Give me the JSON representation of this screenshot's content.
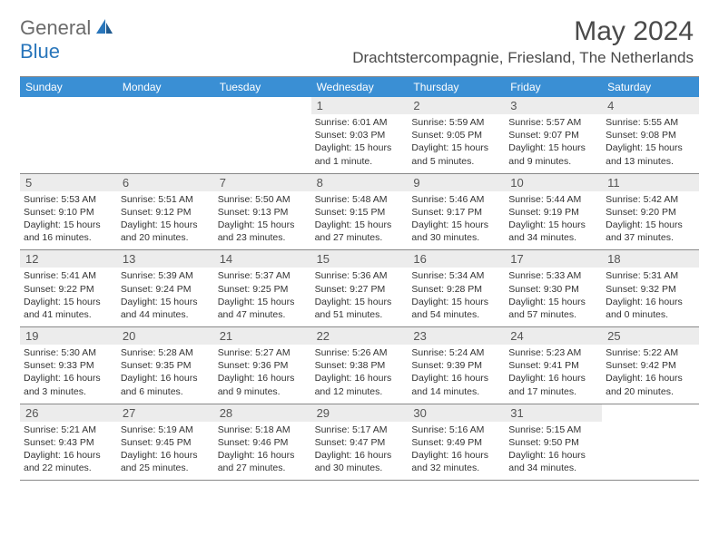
{
  "logo": {
    "general": "General",
    "blue": "Blue"
  },
  "title": "May 2024",
  "location": "Drachtstercompagnie, Friesland, The Netherlands",
  "colors": {
    "header_bg": "#3a8fd4",
    "header_text": "#ffffff",
    "daynum_bg": "#ececec",
    "border": "#888888",
    "logo_gray": "#6b6b6b",
    "logo_blue": "#2976bb"
  },
  "day_headers": [
    "Sunday",
    "Monday",
    "Tuesday",
    "Wednesday",
    "Thursday",
    "Friday",
    "Saturday"
  ],
  "weeks": [
    [
      {
        "n": "",
        "sr": "",
        "ss": "",
        "dl": ""
      },
      {
        "n": "",
        "sr": "",
        "ss": "",
        "dl": ""
      },
      {
        "n": "",
        "sr": "",
        "ss": "",
        "dl": ""
      },
      {
        "n": "1",
        "sr": "Sunrise: 6:01 AM",
        "ss": "Sunset: 9:03 PM",
        "dl": "Daylight: 15 hours and 1 minute."
      },
      {
        "n": "2",
        "sr": "Sunrise: 5:59 AM",
        "ss": "Sunset: 9:05 PM",
        "dl": "Daylight: 15 hours and 5 minutes."
      },
      {
        "n": "3",
        "sr": "Sunrise: 5:57 AM",
        "ss": "Sunset: 9:07 PM",
        "dl": "Daylight: 15 hours and 9 minutes."
      },
      {
        "n": "4",
        "sr": "Sunrise: 5:55 AM",
        "ss": "Sunset: 9:08 PM",
        "dl": "Daylight: 15 hours and 13 minutes."
      }
    ],
    [
      {
        "n": "5",
        "sr": "Sunrise: 5:53 AM",
        "ss": "Sunset: 9:10 PM",
        "dl": "Daylight: 15 hours and 16 minutes."
      },
      {
        "n": "6",
        "sr": "Sunrise: 5:51 AM",
        "ss": "Sunset: 9:12 PM",
        "dl": "Daylight: 15 hours and 20 minutes."
      },
      {
        "n": "7",
        "sr": "Sunrise: 5:50 AM",
        "ss": "Sunset: 9:13 PM",
        "dl": "Daylight: 15 hours and 23 minutes."
      },
      {
        "n": "8",
        "sr": "Sunrise: 5:48 AM",
        "ss": "Sunset: 9:15 PM",
        "dl": "Daylight: 15 hours and 27 minutes."
      },
      {
        "n": "9",
        "sr": "Sunrise: 5:46 AM",
        "ss": "Sunset: 9:17 PM",
        "dl": "Daylight: 15 hours and 30 minutes."
      },
      {
        "n": "10",
        "sr": "Sunrise: 5:44 AM",
        "ss": "Sunset: 9:19 PM",
        "dl": "Daylight: 15 hours and 34 minutes."
      },
      {
        "n": "11",
        "sr": "Sunrise: 5:42 AM",
        "ss": "Sunset: 9:20 PM",
        "dl": "Daylight: 15 hours and 37 minutes."
      }
    ],
    [
      {
        "n": "12",
        "sr": "Sunrise: 5:41 AM",
        "ss": "Sunset: 9:22 PM",
        "dl": "Daylight: 15 hours and 41 minutes."
      },
      {
        "n": "13",
        "sr": "Sunrise: 5:39 AM",
        "ss": "Sunset: 9:24 PM",
        "dl": "Daylight: 15 hours and 44 minutes."
      },
      {
        "n": "14",
        "sr": "Sunrise: 5:37 AM",
        "ss": "Sunset: 9:25 PM",
        "dl": "Daylight: 15 hours and 47 minutes."
      },
      {
        "n": "15",
        "sr": "Sunrise: 5:36 AM",
        "ss": "Sunset: 9:27 PM",
        "dl": "Daylight: 15 hours and 51 minutes."
      },
      {
        "n": "16",
        "sr": "Sunrise: 5:34 AM",
        "ss": "Sunset: 9:28 PM",
        "dl": "Daylight: 15 hours and 54 minutes."
      },
      {
        "n": "17",
        "sr": "Sunrise: 5:33 AM",
        "ss": "Sunset: 9:30 PM",
        "dl": "Daylight: 15 hours and 57 minutes."
      },
      {
        "n": "18",
        "sr": "Sunrise: 5:31 AM",
        "ss": "Sunset: 9:32 PM",
        "dl": "Daylight: 16 hours and 0 minutes."
      }
    ],
    [
      {
        "n": "19",
        "sr": "Sunrise: 5:30 AM",
        "ss": "Sunset: 9:33 PM",
        "dl": "Daylight: 16 hours and 3 minutes."
      },
      {
        "n": "20",
        "sr": "Sunrise: 5:28 AM",
        "ss": "Sunset: 9:35 PM",
        "dl": "Daylight: 16 hours and 6 minutes."
      },
      {
        "n": "21",
        "sr": "Sunrise: 5:27 AM",
        "ss": "Sunset: 9:36 PM",
        "dl": "Daylight: 16 hours and 9 minutes."
      },
      {
        "n": "22",
        "sr": "Sunrise: 5:26 AM",
        "ss": "Sunset: 9:38 PM",
        "dl": "Daylight: 16 hours and 12 minutes."
      },
      {
        "n": "23",
        "sr": "Sunrise: 5:24 AM",
        "ss": "Sunset: 9:39 PM",
        "dl": "Daylight: 16 hours and 14 minutes."
      },
      {
        "n": "24",
        "sr": "Sunrise: 5:23 AM",
        "ss": "Sunset: 9:41 PM",
        "dl": "Daylight: 16 hours and 17 minutes."
      },
      {
        "n": "25",
        "sr": "Sunrise: 5:22 AM",
        "ss": "Sunset: 9:42 PM",
        "dl": "Daylight: 16 hours and 20 minutes."
      }
    ],
    [
      {
        "n": "26",
        "sr": "Sunrise: 5:21 AM",
        "ss": "Sunset: 9:43 PM",
        "dl": "Daylight: 16 hours and 22 minutes."
      },
      {
        "n": "27",
        "sr": "Sunrise: 5:19 AM",
        "ss": "Sunset: 9:45 PM",
        "dl": "Daylight: 16 hours and 25 minutes."
      },
      {
        "n": "28",
        "sr": "Sunrise: 5:18 AM",
        "ss": "Sunset: 9:46 PM",
        "dl": "Daylight: 16 hours and 27 minutes."
      },
      {
        "n": "29",
        "sr": "Sunrise: 5:17 AM",
        "ss": "Sunset: 9:47 PM",
        "dl": "Daylight: 16 hours and 30 minutes."
      },
      {
        "n": "30",
        "sr": "Sunrise: 5:16 AM",
        "ss": "Sunset: 9:49 PM",
        "dl": "Daylight: 16 hours and 32 minutes."
      },
      {
        "n": "31",
        "sr": "Sunrise: 5:15 AM",
        "ss": "Sunset: 9:50 PM",
        "dl": "Daylight: 16 hours and 34 minutes."
      },
      {
        "n": "",
        "sr": "",
        "ss": "",
        "dl": ""
      }
    ]
  ]
}
